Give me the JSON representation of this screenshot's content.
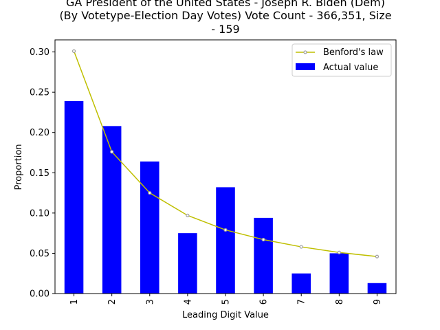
{
  "chart_data": {
    "type": "bar",
    "title_lines": [
      "GA President of the United States - Joseph R. Biden (Dem)",
      "(By Votetype-Election Day Votes) Vote Count - 366,351, Size",
      "- 159"
    ],
    "xlabel": "Leading Digit Value",
    "ylabel": "Proportion",
    "categories": [
      "1",
      "2",
      "3",
      "4",
      "5",
      "6",
      "7",
      "8",
      "9"
    ],
    "ylim": [
      0,
      0.315
    ],
    "yticks": [
      "0.00",
      "0.05",
      "0.10",
      "0.15",
      "0.20",
      "0.25",
      "0.30"
    ],
    "grid": false,
    "legend_position": "upper right",
    "series": [
      {
        "name": "Benford's law",
        "kind": "line",
        "color": "#bfbf00",
        "marker_color": "#9e9e9e",
        "values": [
          0.301,
          0.176,
          0.125,
          0.097,
          0.079,
          0.067,
          0.058,
          0.051,
          0.046
        ]
      },
      {
        "name": "Actual value",
        "kind": "bar",
        "color": "#0000ff",
        "values": [
          0.239,
          0.208,
          0.164,
          0.075,
          0.132,
          0.094,
          0.025,
          0.05,
          0.013
        ]
      }
    ]
  }
}
